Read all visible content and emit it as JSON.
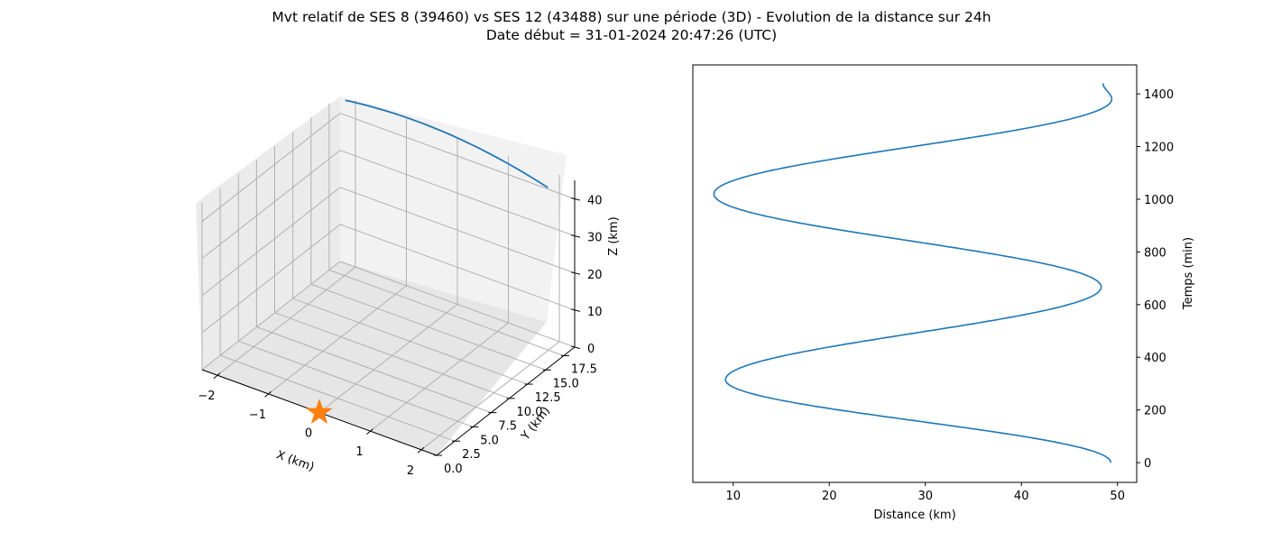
{
  "title_line1": "Mvt relatif de SES 8 (39460) vs SES 12 (43488) sur une période (3D) - Evolution de la distance sur 24h",
  "title_line2": "Date début = 31-01-2024 20:47:26 (UTC)",
  "colors": {
    "series": "#1f77b4",
    "marker": "#ff7f0e",
    "grid": "#b0b0b0",
    "pane": "#f2f2f2"
  },
  "chart_data": [
    {
      "type": "line3d",
      "xlabel": "X (km)",
      "ylabel": "Y (km)",
      "zlabel": "Z (km)",
      "xticks": [
        "−2",
        "−1",
        "0",
        "1",
        "2"
      ],
      "yticks": [
        "0.0",
        "2.5",
        "5.0",
        "7.5",
        "10.0",
        "12.5",
        "15.0",
        "17.5"
      ],
      "zticks": [
        "0",
        "10",
        "20",
        "30",
        "40"
      ],
      "xlim": [
        -2.3,
        2.3
      ],
      "ylim": [
        0,
        19
      ],
      "zlim": [
        0,
        45
      ],
      "grid": true,
      "series": [
        {
          "x": [
            -2.2,
            -1.0,
            0.0,
            1.0,
            2.0
          ],
          "y": [
            19,
            18.6,
            18.2,
            17.8,
            17.4
          ],
          "z": [
            44,
            44,
            44,
            44,
            44
          ]
        }
      ],
      "marker": {
        "shape": "star",
        "x": 0,
        "y": 0,
        "z": 0
      }
    },
    {
      "type": "line",
      "xlabel": "Distance (km)",
      "ylabel": "Temps (min)",
      "xticks": [
        10,
        20,
        30,
        40,
        50
      ],
      "yticks": [
        0,
        200,
        400,
        600,
        800,
        1000,
        1200,
        1400
      ],
      "xlim": [
        5.8,
        52
      ],
      "ylim": [
        -75,
        1510
      ],
      "yaxis_position": "right",
      "grid": false,
      "series_params": {
        "center": 28.6,
        "amplitude": 20.6,
        "period_min": 705,
        "phase_min": 667,
        "t_end": 1440
      },
      "extrema": [
        {
          "time": 0,
          "distance": 49.3
        },
        {
          "time": 315,
          "distance": 9.2
        },
        {
          "time": 667,
          "distance": 48.3
        },
        {
          "time": 1020,
          "distance": 8.0
        },
        {
          "time": 1380,
          "distance": 49.4
        },
        {
          "time": 1440,
          "distance": 48.5
        }
      ]
    }
  ]
}
